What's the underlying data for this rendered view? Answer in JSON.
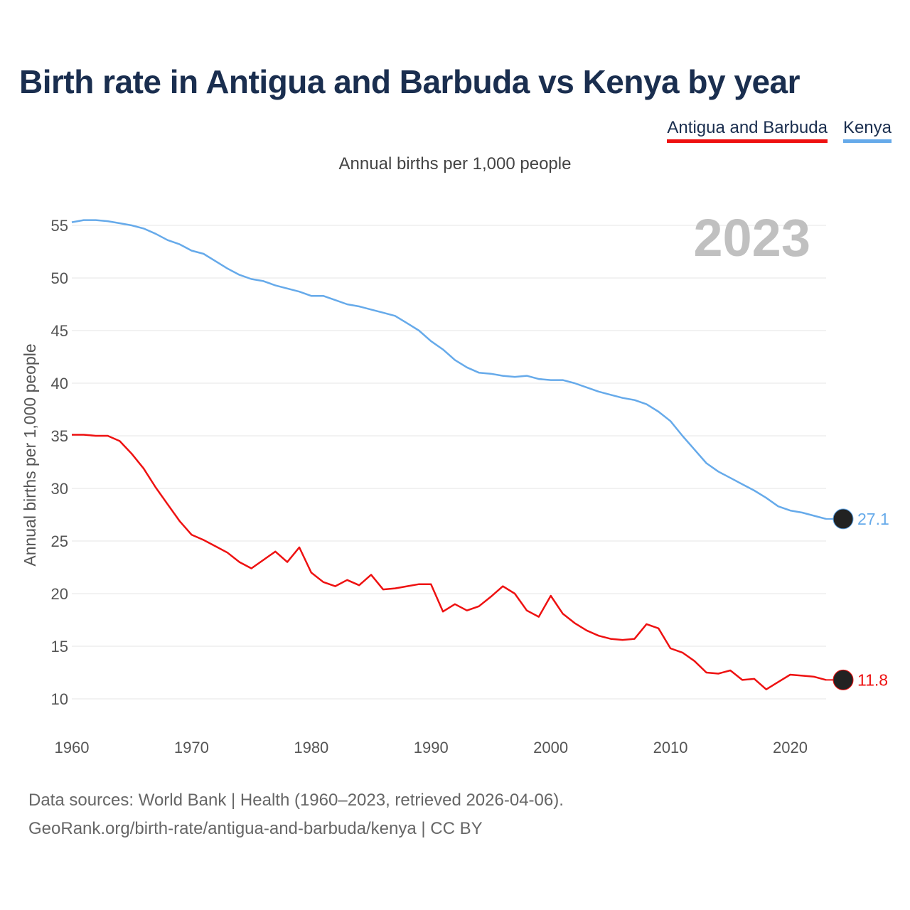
{
  "title": "Birth rate in Antigua and Barbuda vs Kenya by year",
  "legend": [
    {
      "name": "Antigua and Barbuda",
      "color": "#ee1111"
    },
    {
      "name": "Kenya",
      "color": "#66aaea"
    }
  ],
  "subtitle": "Annual births per 1,000 people",
  "footer": {
    "line1": "Data sources: World Bank | Health (1960–2023, retrieved 2026-04-06).",
    "line2": "GeoRank.org/birth-rate/antigua-and-barbuda/kenya | CC BY"
  },
  "chart_data": {
    "type": "line",
    "title": "Birth rate in Antigua and Barbuda vs Kenya by year",
    "ylabel": "Annual births per 1,000 people",
    "xlabel": "",
    "year_label": "2023",
    "xlim": [
      1960,
      2023
    ],
    "ylim": [
      10,
      55
    ],
    "xticks": [
      1960,
      1970,
      1980,
      1990,
      2000,
      2010,
      2020
    ],
    "yticks": [
      10,
      15,
      20,
      25,
      30,
      35,
      40,
      45,
      50,
      55
    ],
    "grid": true,
    "x_start": 1960,
    "series": [
      {
        "name": "Kenya",
        "color": "#66aaea",
        "end_label": "27.1",
        "values": [
          55.3,
          55.5,
          55.5,
          55.4,
          55.2,
          55.0,
          54.7,
          54.2,
          53.6,
          53.2,
          52.6,
          52.3,
          51.6,
          50.9,
          50.3,
          49.9,
          49.7,
          49.3,
          49.0,
          48.7,
          48.3,
          48.3,
          47.9,
          47.5,
          47.3,
          47.0,
          46.7,
          46.4,
          45.7,
          45.0,
          44.0,
          43.2,
          42.2,
          41.5,
          41.0,
          40.9,
          40.7,
          40.6,
          40.7,
          40.4,
          40.3,
          40.3,
          40.0,
          39.6,
          39.2,
          38.9,
          38.6,
          38.4,
          38.0,
          37.3,
          36.4,
          35.0,
          33.7,
          32.4,
          31.6,
          31.0,
          30.4,
          29.8,
          29.1,
          28.3,
          27.9,
          27.7,
          27.4,
          27.1
        ]
      },
      {
        "name": "Antigua and Barbuda",
        "color": "#ee1111",
        "end_label": "11.8",
        "values": [
          35.1,
          35.1,
          35.0,
          35.0,
          34.5,
          33.3,
          31.9,
          30.1,
          28.5,
          26.9,
          25.6,
          25.1,
          24.5,
          23.9,
          23.0,
          22.4,
          23.2,
          24.0,
          23.0,
          24.4,
          22.0,
          21.1,
          20.7,
          21.3,
          20.8,
          21.8,
          20.4,
          20.5,
          20.7,
          20.9,
          20.9,
          18.3,
          19.0,
          18.4,
          18.8,
          19.7,
          20.7,
          20.0,
          18.4,
          17.8,
          19.8,
          18.1,
          17.2,
          16.5,
          16.0,
          15.7,
          15.6,
          15.7,
          17.1,
          16.7,
          14.8,
          14.4,
          13.6,
          12.5,
          12.4,
          12.7,
          11.8,
          11.9,
          10.9,
          11.6,
          12.3,
          12.2,
          12.1,
          11.8
        ]
      }
    ]
  }
}
